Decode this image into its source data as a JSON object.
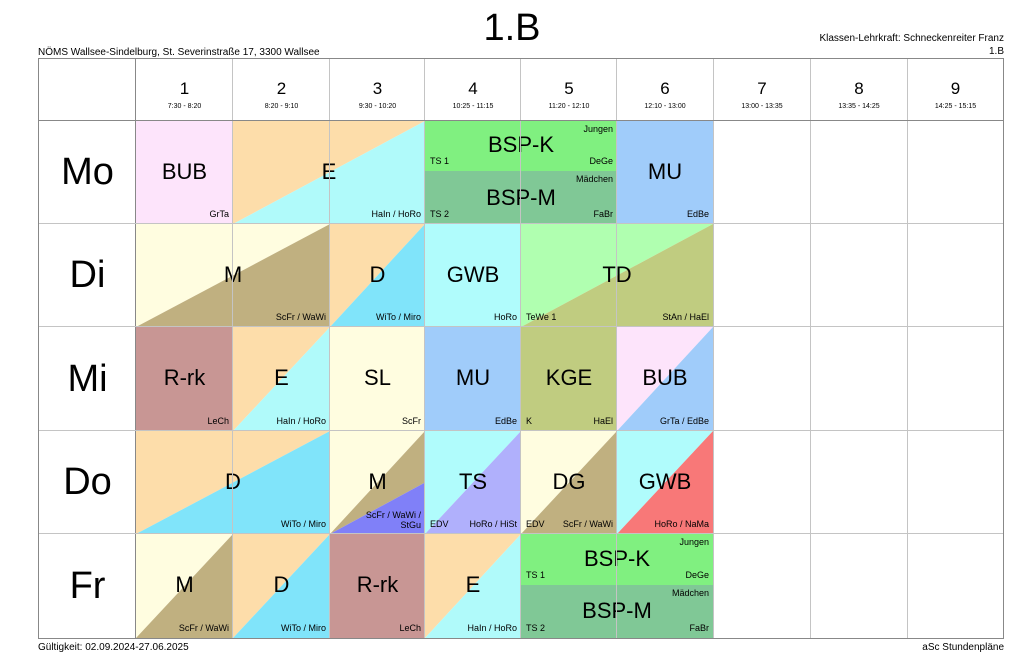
{
  "header": {
    "title": "1.B",
    "school": "NÖMS Wallsee-Sindelburg, St. Severinstraße 17, 3300 Wallsee",
    "class_teacher": "Klassen-Lehrkraft: Schneckenreiter Franz",
    "class_short": "1.B"
  },
  "footer": {
    "validity": "Gültigkeit: 02.09.2024-27.06.2025",
    "brand": "aSc Stundenpläne"
  },
  "periods": [
    {
      "num": "1",
      "time": "7:30 - 8:20"
    },
    {
      "num": "2",
      "time": "8:20 - 9:10"
    },
    {
      "num": "3",
      "time": "9:30 - 10:20"
    },
    {
      "num": "4",
      "time": "10:25 - 11:15"
    },
    {
      "num": "5",
      "time": "11:20 - 12:10"
    },
    {
      "num": "6",
      "time": "12:10 - 13:00"
    },
    {
      "num": "7",
      "time": "13:00 - 13:35"
    },
    {
      "num": "8",
      "time": "13:35 - 14:25"
    },
    {
      "num": "9",
      "time": "14:25 - 15:15"
    }
  ],
  "days": [
    "Mo",
    "Di",
    "Mi",
    "Do",
    "Fr"
  ],
  "colors": {
    "pink": "#fde4fb",
    "peach": "#fdddaa",
    "aqua": "#b0fafa",
    "green_bright": "#80f080",
    "green_dark": "#80c896",
    "blue": "#a0ccfa",
    "cream": "#fffde0",
    "khaki": "#c0b080",
    "cyan": "#80e4fa",
    "light_cyan": "#b0fcfc",
    "light_green": "#b0ffb0",
    "olive": "#c0cc80",
    "rose": "#c89694",
    "lavender": "#b0b0fc",
    "violet": "#8080f8",
    "salmon": "#f87878"
  },
  "lessons": {
    "mo": {
      "bub": {
        "subject": "BUB",
        "teacher": "GrTa"
      },
      "e": {
        "subject": "E",
        "teacher": "HaIn / HoRo"
      },
      "bspk": {
        "subject": "BSP-K",
        "group": "TS 1",
        "group_name": "Jungen",
        "teacher": "DeGe"
      },
      "bspm": {
        "subject": "BSP-M",
        "group": "TS 2",
        "group_name": "Mädchen",
        "teacher": "FaBr"
      },
      "mu": {
        "subject": "MU",
        "teacher": "EdBe"
      }
    },
    "di": {
      "m": {
        "subject": "M",
        "teacher": "ScFr / WaWi"
      },
      "d": {
        "subject": "D",
        "teacher": "WiTo / Miro"
      },
      "gwb": {
        "subject": "GWB",
        "teacher": "HoRo"
      },
      "td": {
        "subject": "TD",
        "group": "TeWe 1",
        "teacher": "StAn / HaEl"
      }
    },
    "mi": {
      "rrk": {
        "subject": "R-rk",
        "teacher": "LeCh"
      },
      "e": {
        "subject": "E",
        "teacher": "HaIn / HoRo"
      },
      "sl": {
        "subject": "SL",
        "teacher": "ScFr"
      },
      "mu": {
        "subject": "MU",
        "teacher": "EdBe"
      },
      "kge": {
        "subject": "KGE",
        "group": "K",
        "teacher": "HaEl"
      },
      "bub": {
        "subject": "BUB",
        "teacher": "GrTa / EdBe"
      }
    },
    "do": {
      "d": {
        "subject": "D",
        "teacher": "WiTo / Miro"
      },
      "m": {
        "subject": "M",
        "teacher_line1": "ScFr / WaWi /",
        "teacher_line2": "StGu"
      },
      "ts": {
        "subject": "TS",
        "group": "EDV",
        "teacher": "HoRo / HiSt"
      },
      "dg": {
        "subject": "DG",
        "group": "EDV",
        "teacher": "ScFr / WaWi"
      },
      "gwb": {
        "subject": "GWB",
        "teacher": "HoRo / NaMa"
      }
    },
    "fr": {
      "m": {
        "subject": "M",
        "teacher": "ScFr / WaWi"
      },
      "d": {
        "subject": "D",
        "teacher": "WiTo / Miro"
      },
      "rrk": {
        "subject": "R-rk",
        "teacher": "LeCh"
      },
      "e": {
        "subject": "E",
        "teacher": "HaIn / HoRo"
      },
      "bspk": {
        "subject": "BSP-K",
        "group": "TS 1",
        "group_name": "Jungen",
        "teacher": "DeGe"
      },
      "bspm": {
        "subject": "BSP-M",
        "group": "TS 2",
        "group_name": "Mädchen",
        "teacher": "FaBr"
      }
    }
  }
}
